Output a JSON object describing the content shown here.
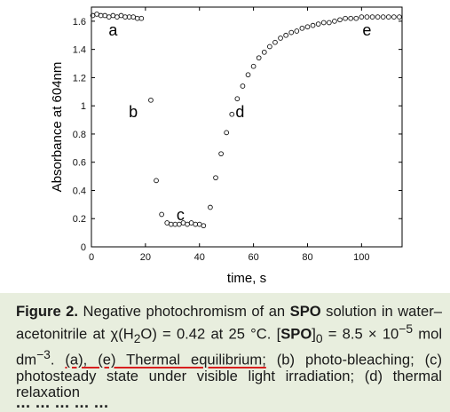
{
  "chart_data": {
    "type": "scatter",
    "xlabel": "time, s",
    "ylabel": "Absorbance at 604nm",
    "xlim": [
      0,
      115
    ],
    "ylim": [
      0,
      1.7
    ],
    "x_ticks": [
      "0",
      "20",
      "40",
      "60",
      "80",
      "100"
    ],
    "y_ticks": [
      "0",
      "0.2",
      "0.4",
      "0.6",
      "0.8",
      "1",
      "1.2",
      "1.4",
      "1.6"
    ],
    "grid": false,
    "marker": "open-circle",
    "points": [
      [
        0.5,
        1.64
      ],
      [
        2,
        1.65
      ],
      [
        3.5,
        1.64
      ],
      [
        5,
        1.64
      ],
      [
        6.5,
        1.63
      ],
      [
        8,
        1.64
      ],
      [
        9.5,
        1.63
      ],
      [
        11,
        1.64
      ],
      [
        12.5,
        1.63
      ],
      [
        14,
        1.63
      ],
      [
        15.5,
        1.63
      ],
      [
        17,
        1.62
      ],
      [
        18.5,
        1.62
      ],
      [
        22,
        1.04
      ],
      [
        24,
        0.47
      ],
      [
        26,
        0.23
      ],
      [
        28,
        0.17
      ],
      [
        29.5,
        0.16
      ],
      [
        31,
        0.16
      ],
      [
        32.5,
        0.16
      ],
      [
        34,
        0.17
      ],
      [
        35.5,
        0.16
      ],
      [
        37,
        0.17
      ],
      [
        38.5,
        0.16
      ],
      [
        40,
        0.16
      ],
      [
        41.5,
        0.15
      ],
      [
        44,
        0.28
      ],
      [
        46,
        0.49
      ],
      [
        48,
        0.66
      ],
      [
        50,
        0.81
      ],
      [
        52,
        0.94
      ],
      [
        54,
        1.05
      ],
      [
        56,
        1.14
      ],
      [
        58,
        1.22
      ],
      [
        60,
        1.28
      ],
      [
        62,
        1.34
      ],
      [
        64,
        1.38
      ],
      [
        66,
        1.42
      ],
      [
        68,
        1.45
      ],
      [
        70,
        1.48
      ],
      [
        72,
        1.5
      ],
      [
        74,
        1.52
      ],
      [
        76,
        1.53
      ],
      [
        78,
        1.55
      ],
      [
        80,
        1.56
      ],
      [
        82,
        1.57
      ],
      [
        84,
        1.58
      ],
      [
        86,
        1.59
      ],
      [
        88,
        1.59
      ],
      [
        90,
        1.6
      ],
      [
        92,
        1.61
      ],
      [
        94,
        1.62
      ],
      [
        96,
        1.62
      ],
      [
        98,
        1.62
      ],
      [
        100,
        1.63
      ],
      [
        102,
        1.63
      ],
      [
        104,
        1.63
      ],
      [
        106,
        1.63
      ],
      [
        108,
        1.63
      ],
      [
        110,
        1.63
      ],
      [
        112,
        1.63
      ],
      [
        114,
        1.63
      ]
    ],
    "annotations": [
      {
        "text": "a",
        "x": 8,
        "y": 1.5
      },
      {
        "text": "b",
        "x": 15.5,
        "y": 0.92
      },
      {
        "text": "c",
        "x": 33,
        "y": 0.19
      },
      {
        "text": "d",
        "x": 55,
        "y": 0.92
      },
      {
        "text": "e",
        "x": 102,
        "y": 1.5
      }
    ]
  },
  "caption": {
    "label": "Figure 2.",
    "t1": " Negative photochromism of an ",
    "spo1": "SPO",
    "t2": " solution in water–acetonitrile at χ(H",
    "sub2": "2",
    "t3": "O) = 0.42 at 25 °C. [",
    "spo2": "SPO",
    "t4": "]",
    "sub0": "0",
    "t5": " = 8.5 × 10",
    "sup": "−5",
    "t6": " mol dm",
    "sup2": "−3",
    "t7": ". ",
    "underlined": "(a), (e) Thermal equilibrium;",
    "t8": " (b) photo-bleaching; (c) photosteady state under visible light irradiation; (d) thermal relaxation"
  },
  "next_heading_fragment": "... ... ... ... ..."
}
